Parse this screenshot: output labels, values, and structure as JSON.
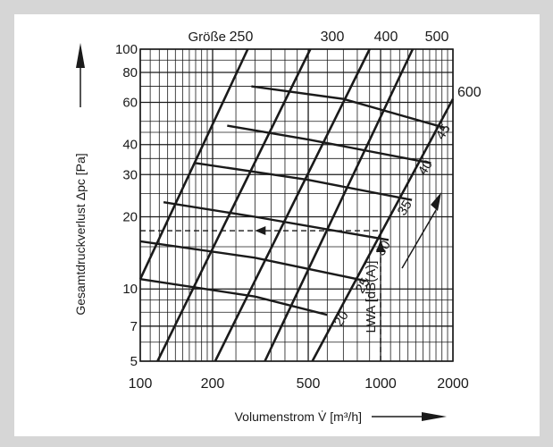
{
  "chart_data": {
    "type": "line",
    "xscale": "log",
    "yscale": "log",
    "xlim": [
      100,
      2000
    ],
    "ylim": [
      5,
      100
    ],
    "grid": true,
    "xlabel": "Volumenstrom V̇ [m³/h]",
    "ylabel": "Gesamtdruckverlust Δpc [Pa]",
    "x_tick_labels": [
      "100",
      "200",
      "500",
      "1000",
      "2000"
    ],
    "x_tick_values": [
      100,
      200,
      500,
      1000,
      2000
    ],
    "y_tick_labels": [
      "5",
      "7",
      "10",
      "20",
      "30",
      "40",
      "60",
      "80",
      "100"
    ],
    "y_tick_values": [
      5,
      7,
      10,
      20,
      30,
      40,
      60,
      80,
      100
    ],
    "size_title": "Größe",
    "sound_axis_label": "LWA [dB(A)]",
    "size_series": [
      {
        "name": "250",
        "points": [
          [
            100,
            11
          ],
          [
            280,
            100
          ]
        ]
      },
      {
        "name": "300",
        "points": [
          [
            118,
            5
          ],
          [
            510,
            100
          ]
        ]
      },
      {
        "name": "400",
        "points": [
          [
            205,
            5
          ],
          [
            900,
            100
          ]
        ]
      },
      {
        "name": "500",
        "points": [
          [
            330,
            5
          ],
          [
            1360,
            100
          ]
        ]
      },
      {
        "name": "600",
        "points": [
          [
            520,
            5
          ],
          [
            2000,
            62
          ]
        ]
      }
    ],
    "sound_series": [
      {
        "name": "20",
        "points": [
          [
            100,
            11
          ],
          [
            300,
            9.3
          ],
          [
            600,
            7.8
          ]
        ]
      },
      {
        "name": "25",
        "points": [
          [
            100,
            15.8
          ],
          [
            300,
            13.5
          ],
          [
            870,
            10.8
          ]
        ]
      },
      {
        "name": "30",
        "points": [
          [
            125,
            23
          ],
          [
            300,
            20
          ],
          [
            1080,
            16
          ]
        ]
      },
      {
        "name": "35",
        "points": [
          [
            170,
            33.5
          ],
          [
            500,
            28.5
          ],
          [
            1350,
            23.5
          ]
        ]
      },
      {
        "name": "40",
        "points": [
          [
            230,
            48
          ],
          [
            500,
            42
          ],
          [
            1620,
            33.5
          ]
        ]
      },
      {
        "name": "45",
        "points": [
          [
            290,
            70
          ],
          [
            700,
            62
          ],
          [
            1850,
            47
          ]
        ]
      }
    ],
    "example": {
      "x": 1000,
      "y": 17.5
    },
    "axis_arrow_color": "#1a1a1a"
  }
}
